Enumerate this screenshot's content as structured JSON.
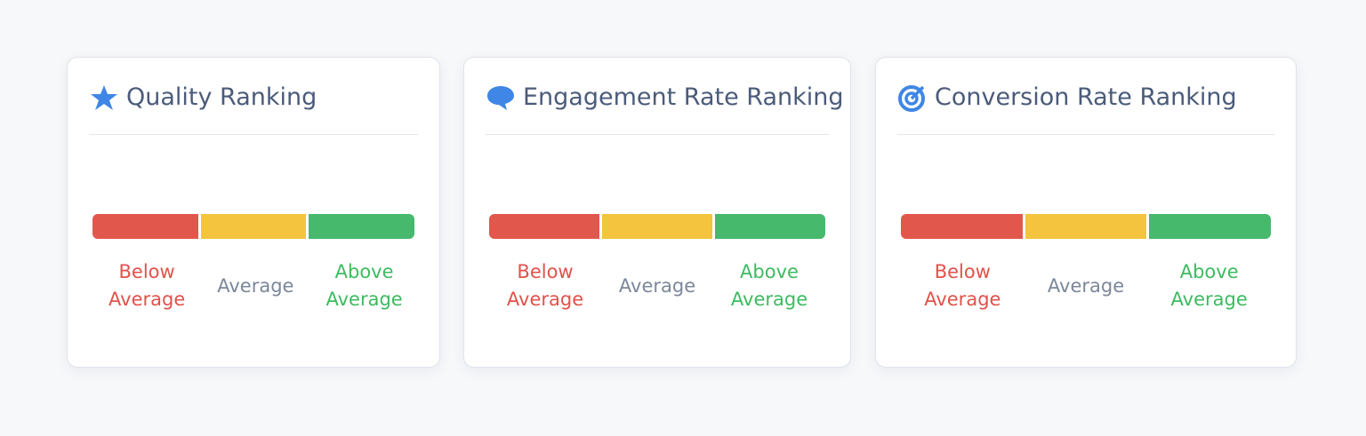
{
  "cards": [
    {
      "title": "Quality Ranking",
      "segments": [
        {
          "label": "Below Average"
        },
        {
          "label": "Average"
        },
        {
          "label": "Above Average"
        }
      ]
    },
    {
      "title": "Engagement Rate Ranking",
      "segments": [
        {
          "label": "Below Average"
        },
        {
          "label": "Average"
        },
        {
          "label": "Above Average"
        }
      ]
    },
    {
      "title": "Conversion Rate Ranking",
      "segments": [
        {
          "label": "Below Average"
        },
        {
          "label": "Average"
        },
        {
          "label": "Above Average"
        }
      ]
    }
  ]
}
